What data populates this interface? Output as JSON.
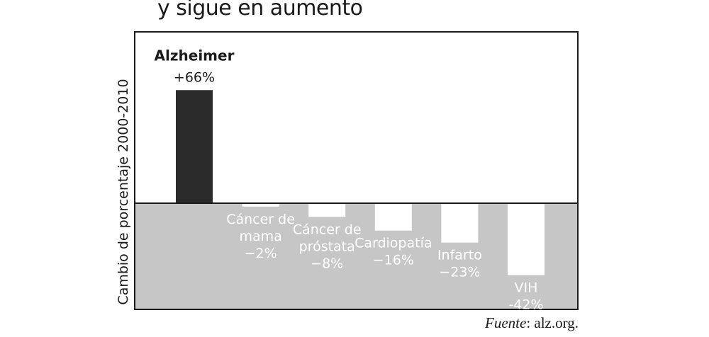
{
  "title": "y sigue en aumento",
  "source": {
    "label": "Fuente",
    "text": "alz.org."
  },
  "chart_data": {
    "type": "bar",
    "title": "y sigue en aumento",
    "ylabel": "Cambio de porcentaje 2000-2010",
    "ylim": [
      -62,
      100
    ],
    "categories": [
      {
        "lines": [
          "Alzheimer"
        ],
        "value_label": "+66%"
      },
      {
        "lines": [
          "Cáncer de",
          "mama"
        ],
        "value_label": "−2%"
      },
      {
        "lines": [
          "Cáncer de",
          "próstata"
        ],
        "value_label": "−8%"
      },
      {
        "lines": [
          "Cardiopatía"
        ],
        "value_label": "−16%"
      },
      {
        "lines": [
          "Infarto"
        ],
        "value_label": "−23%"
      },
      {
        "lines": [
          "VIH"
        ],
        "value_label": "-42%"
      }
    ],
    "values": [
      66,
      -2,
      -8,
      -16,
      -23,
      -42
    ],
    "colors": {
      "positive": "#2b2b2b",
      "negative": "#ffffff",
      "negative_band": "#c6c6c6",
      "frame": "#1a1a1a"
    }
  }
}
